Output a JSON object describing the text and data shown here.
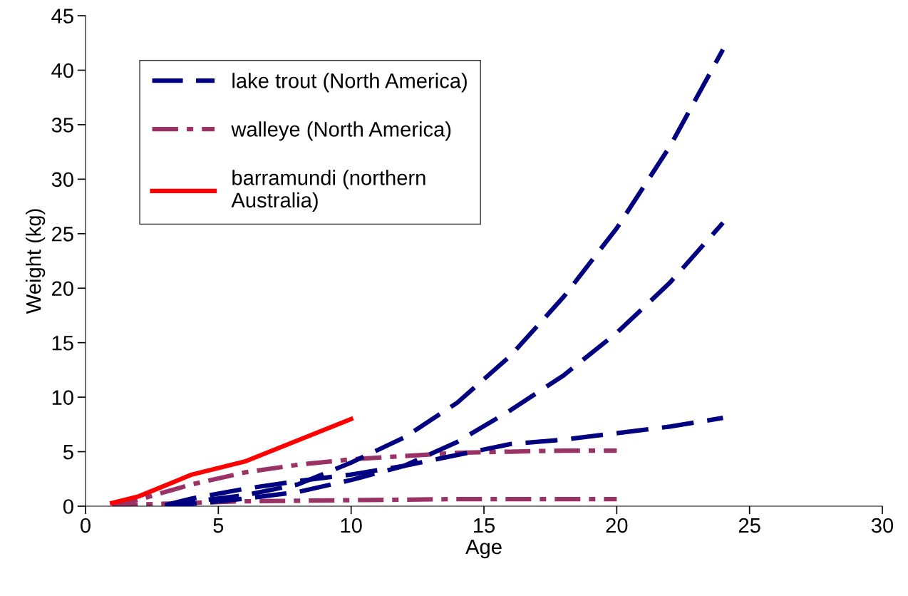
{
  "chart_data": {
    "type": "line",
    "xlabel": "Age",
    "ylabel": "Weight (kg)",
    "xlim": [
      0,
      30
    ],
    "ylim": [
      0,
      45
    ],
    "xticks": [
      0,
      5,
      10,
      15,
      20,
      25,
      30
    ],
    "yticks": [
      0,
      5,
      10,
      15,
      20,
      25,
      30,
      35,
      40,
      45
    ],
    "grid": false,
    "legend": "top left",
    "marker": "none",
    "series": [
      {
        "name": "lake trout (North America)",
        "color": "#000080",
        "line_style": "dashed",
        "x": [
          3,
          4,
          6,
          8,
          10,
          12,
          14,
          16,
          18,
          20,
          22,
          24
        ],
        "values": [
          0.1,
          0.4,
          1.0,
          2.0,
          4.0,
          6.3,
          9.5,
          13.8,
          19.2,
          25.5,
          33.0,
          41.9
        ]
      },
      {
        "color": "#000080",
        "line_style": "dashed",
        "x": [
          3,
          4,
          6,
          8,
          10,
          12,
          14,
          16,
          18,
          20,
          22,
          24
        ],
        "values": [
          0.0,
          0.2,
          0.7,
          1.3,
          2.4,
          3.7,
          5.9,
          8.8,
          12.0,
          15.9,
          20.5,
          26.0
        ]
      },
      {
        "color": "#000080",
        "line_style": "dashed",
        "x": [
          3,
          4,
          6,
          8,
          10,
          12,
          14,
          16,
          18,
          20,
          22,
          24
        ],
        "values": [
          0.1,
          0.7,
          1.6,
          2.3,
          2.9,
          3.7,
          4.7,
          5.7,
          6.1,
          6.7,
          7.3,
          8.1
        ]
      },
      {
        "name": "walleye (North America)",
        "color": "#993366",
        "line_style": "dashdot",
        "x": [
          1,
          2,
          4,
          6,
          8,
          10,
          12,
          14,
          16,
          18,
          20
        ],
        "values": [
          0.1,
          0.6,
          2.0,
          3.1,
          3.8,
          4.3,
          4.6,
          4.9,
          5.0,
          5.1,
          5.1
        ]
      },
      {
        "color": "#993366",
        "line_style": "dashdot",
        "x": [
          1,
          2,
          4,
          6,
          8,
          10,
          12,
          14,
          16,
          18,
          20
        ],
        "values": [
          0.05,
          0.15,
          0.3,
          0.45,
          0.5,
          0.55,
          0.6,
          0.65,
          0.65,
          0.65,
          0.65
        ]
      },
      {
        "name": "barramundi (northern\nAustralia)",
        "color": "#ff0000",
        "line_style": "solid",
        "x": [
          1,
          2,
          4,
          6,
          10
        ],
        "values": [
          0.3,
          0.9,
          2.9,
          4.1,
          8.0
        ]
      }
    ]
  }
}
